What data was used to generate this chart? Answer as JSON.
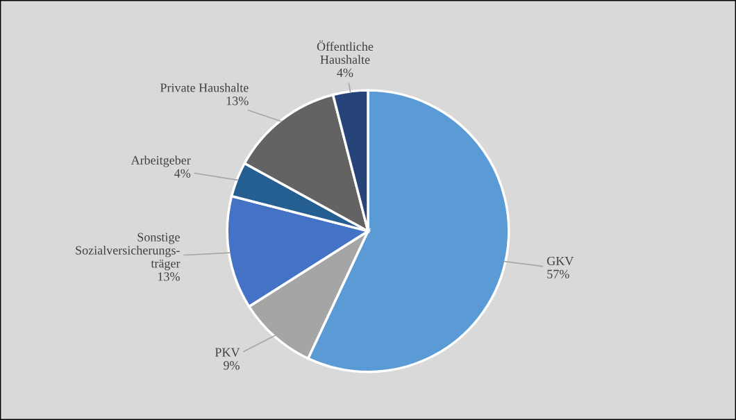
{
  "chart_data": {
    "type": "pie",
    "categories": [
      "GKV",
      "PKV",
      "Sonstige\nSozialversicherungs-\nträger",
      "Arbeitgeber",
      "Private Haushalte",
      "Öffentliche\nHaushalte"
    ],
    "values": [
      57,
      9,
      13,
      4,
      13,
      4
    ],
    "colors": [
      "#5b9bd5",
      "#a5a5a5",
      "#4472c4",
      "#255e91",
      "#636363",
      "#264478"
    ],
    "value_labels": [
      "57%",
      "9%",
      "13%",
      "4%",
      "13%",
      "4%"
    ]
  }
}
